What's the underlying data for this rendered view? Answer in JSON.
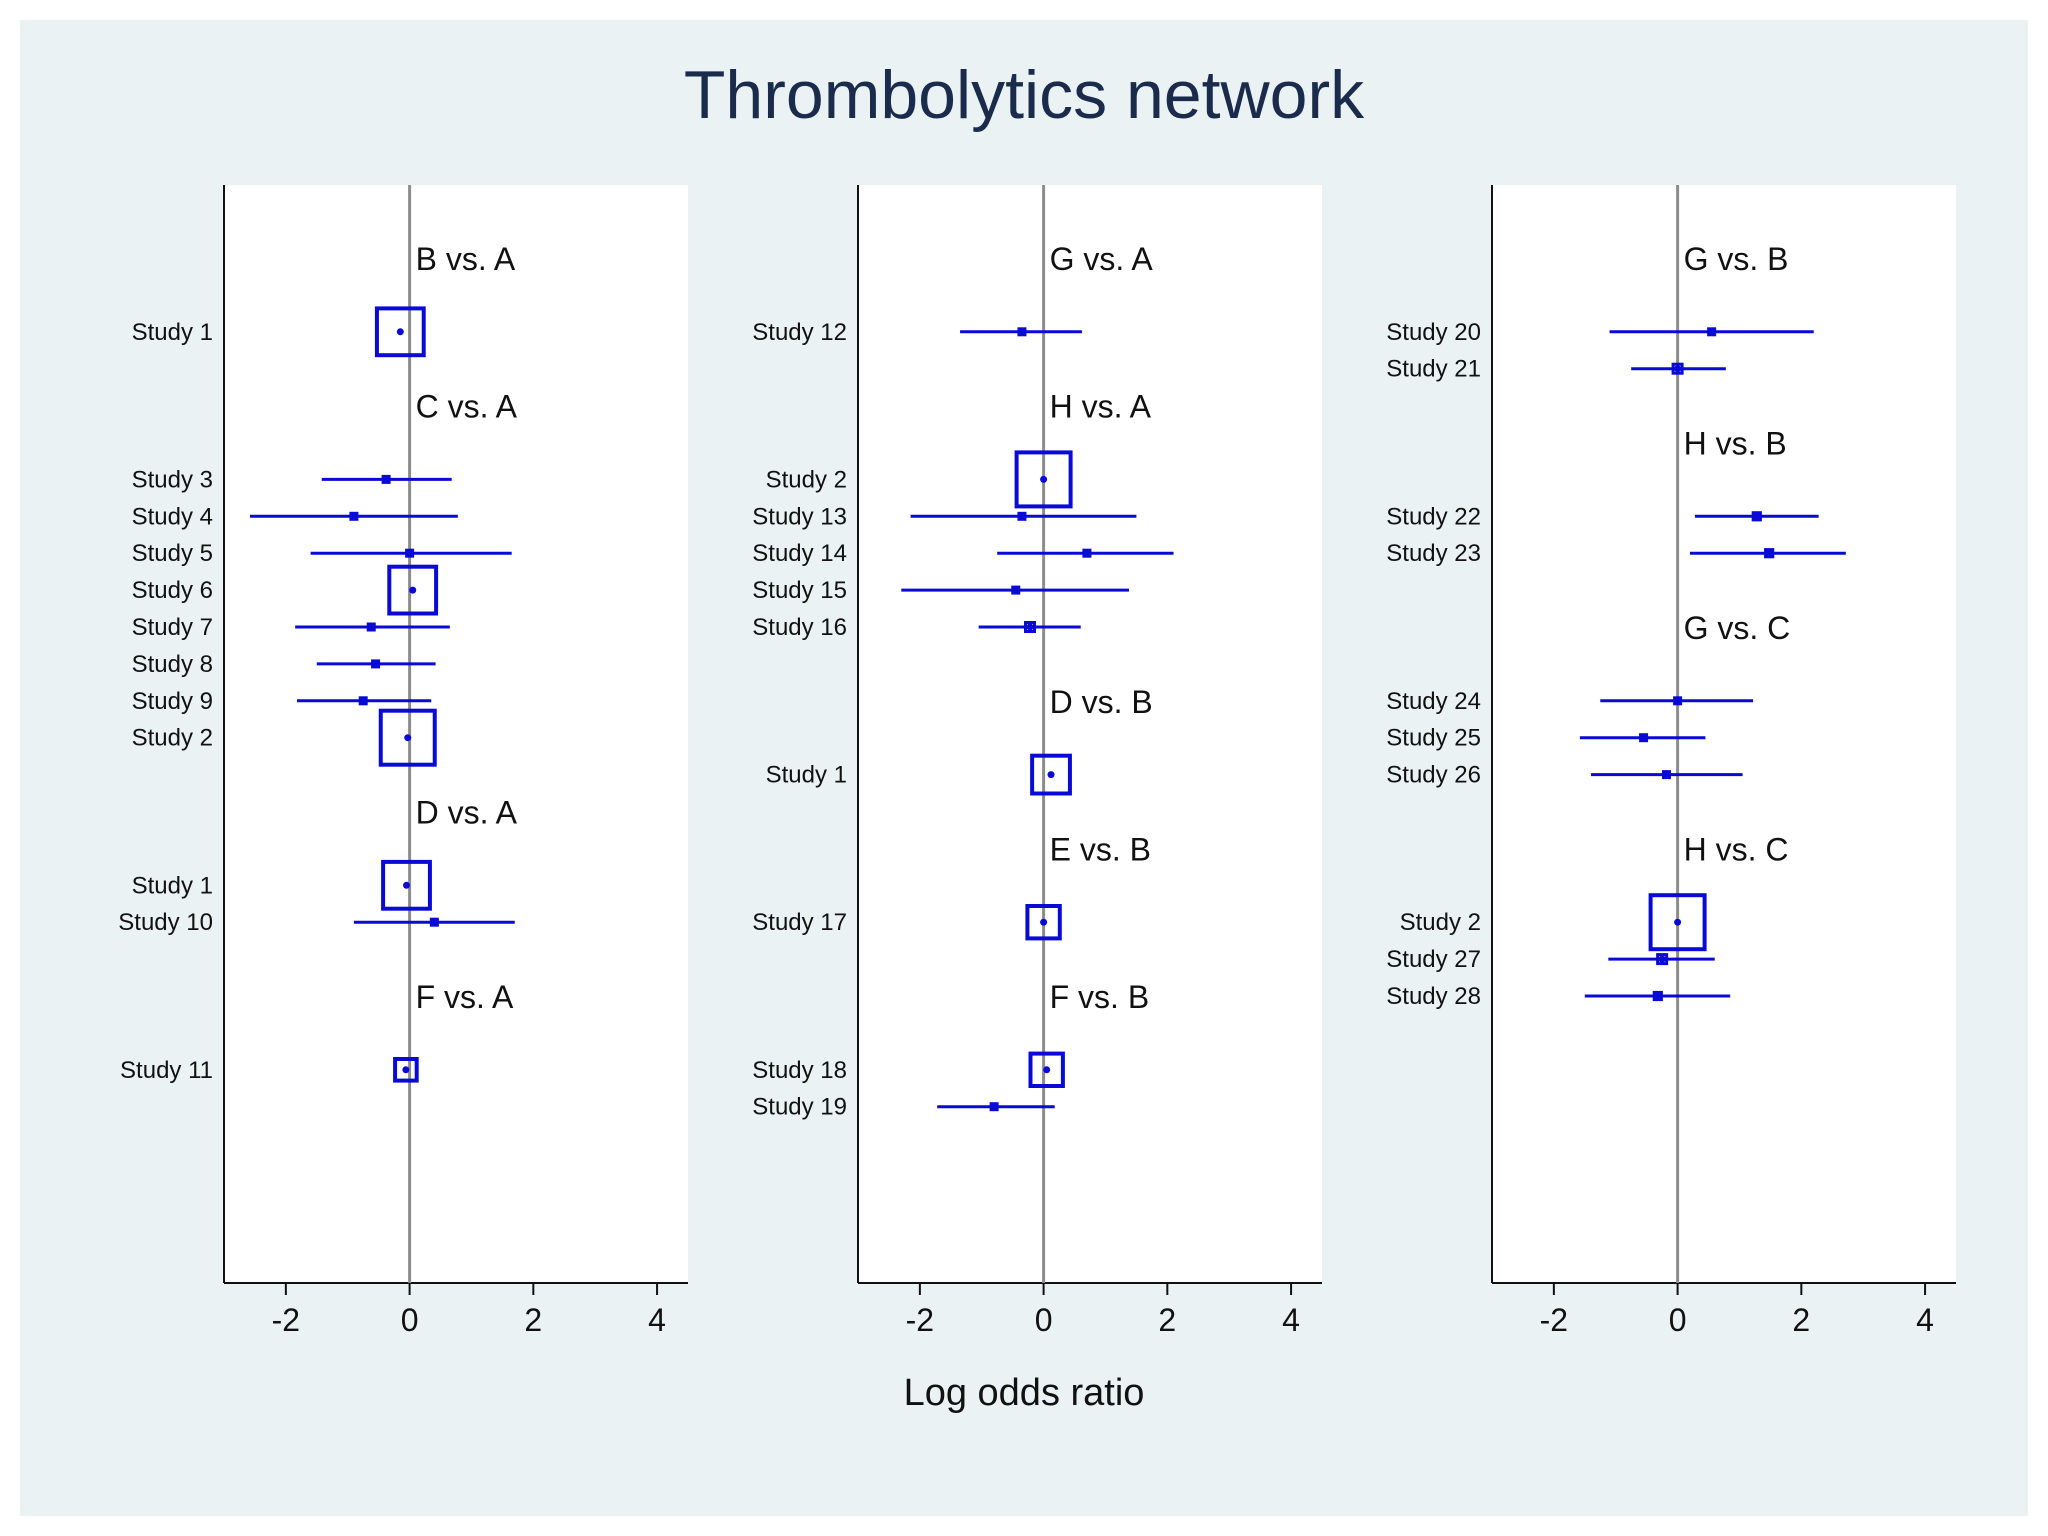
{
  "chart_data": {
    "type": "forest",
    "title": "Thrombolytics network",
    "xlabel": "Log odds ratio",
    "xlim": [
      -3,
      4.5
    ],
    "xticks": [
      -2,
      0,
      2,
      4
    ],
    "colors": {
      "background": "#eaf2f3",
      "panel": "#ffffff",
      "marker": "#0a0ad6",
      "ref_line": "#8c8c8c",
      "axis": "#111111",
      "title": "#1a2b4c"
    },
    "panels": [
      {
        "groups": [
          {
            "comparison": "B vs. A",
            "studies": [
              {
                "label": "Study 1",
                "estimate": -0.15,
                "lower": -0.15,
                "upper": -0.15,
                "weight": 2.6
              }
            ]
          },
          {
            "comparison": "C vs. A",
            "studies": [
              {
                "label": "Study 3",
                "estimate": -0.38,
                "lower": -1.42,
                "upper": 0.68,
                "weight": 0.3
              },
              {
                "label": "Study 4",
                "estimate": -0.9,
                "lower": -2.58,
                "upper": 0.78,
                "weight": 0.2
              },
              {
                "label": "Study 5",
                "estimate": 0.0,
                "lower": -1.6,
                "upper": 1.65,
                "weight": 0.2
              },
              {
                "label": "Study 6",
                "estimate": 0.05,
                "lower": 0.05,
                "upper": 0.05,
                "weight": 2.6
              },
              {
                "label": "Study 7",
                "estimate": -0.62,
                "lower": -1.85,
                "upper": 0.65,
                "weight": 0.3
              },
              {
                "label": "Study 8",
                "estimate": -0.55,
                "lower": -1.5,
                "upper": 0.42,
                "weight": 0.3
              },
              {
                "label": "Study 9",
                "estimate": -0.75,
                "lower": -1.82,
                "upper": 0.35,
                "weight": 0.3
              },
              {
                "label": "Study 2",
                "estimate": -0.03,
                "lower": -0.03,
                "upper": -0.03,
                "weight": 3.0
              }
            ]
          },
          {
            "comparison": "D vs. A",
            "studies": [
              {
                "label": "Study 1",
                "estimate": -0.05,
                "lower": -0.05,
                "upper": -0.05,
                "weight": 2.6
              },
              {
                "label": "Study 10",
                "estimate": 0.4,
                "lower": -0.9,
                "upper": 1.7,
                "weight": 0.3
              }
            ]
          },
          {
            "comparison": "F vs. A",
            "studies": [
              {
                "label": "Study 11",
                "estimate": -0.06,
                "lower": -0.06,
                "upper": -0.06,
                "weight": 1.2
              }
            ]
          }
        ]
      },
      {
        "groups": [
          {
            "comparison": "G vs. A",
            "studies": [
              {
                "label": "Study 12",
                "estimate": -0.35,
                "lower": -1.35,
                "upper": 0.62,
                "weight": 0.3
              }
            ]
          },
          {
            "comparison": "H vs. A",
            "studies": [
              {
                "label": "Study 2",
                "estimate": 0.0,
                "lower": 0.0,
                "upper": 0.0,
                "weight": 3.0
              },
              {
                "label": "Study 13",
                "estimate": -0.35,
                "lower": -2.15,
                "upper": 1.5,
                "weight": 0.2
              },
              {
                "label": "Study 14",
                "estimate": 0.7,
                "lower": -0.75,
                "upper": 2.1,
                "weight": 0.3
              },
              {
                "label": "Study 15",
                "estimate": -0.45,
                "lower": -2.3,
                "upper": 1.38,
                "weight": 0.2
              },
              {
                "label": "Study 16",
                "estimate": -0.22,
                "lower": -1.05,
                "upper": 0.6,
                "weight": 0.5
              }
            ]
          },
          {
            "comparison": "D vs. B",
            "studies": [
              {
                "label": "Study 1",
                "estimate": 0.12,
                "lower": 0.12,
                "upper": 0.12,
                "weight": 2.1
              }
            ]
          },
          {
            "comparison": "E vs. B",
            "studies": [
              {
                "label": "Study 17",
                "estimate": 0.0,
                "lower": 0.0,
                "upper": 0.0,
                "weight": 1.8
              }
            ]
          },
          {
            "comparison": "F vs. B",
            "studies": [
              {
                "label": "Study 18",
                "estimate": 0.05,
                "lower": 0.05,
                "upper": 0.05,
                "weight": 1.8
              },
              {
                "label": "Study 19",
                "estimate": -0.8,
                "lower": -1.72,
                "upper": 0.18,
                "weight": 0.3
              }
            ]
          }
        ]
      },
      {
        "groups": [
          {
            "comparison": "G vs. B",
            "studies": [
              {
                "label": "Study 20",
                "estimate": 0.55,
                "lower": -1.1,
                "upper": 2.2,
                "weight": 0.2
              },
              {
                "label": "Study 21",
                "estimate": 0.0,
                "lower": -0.75,
                "upper": 0.78,
                "weight": 0.5
              }
            ]
          },
          {
            "comparison": "H vs. B",
            "studies": [
              {
                "label": "Study 22",
                "estimate": 1.28,
                "lower": 0.28,
                "upper": 2.28,
                "weight": 0.4
              },
              {
                "label": "Study 23",
                "estimate": 1.48,
                "lower": 0.2,
                "upper": 2.72,
                "weight": 0.4
              }
            ]
          },
          {
            "comparison": "G vs. C",
            "studies": [
              {
                "label": "Study 24",
                "estimate": 0.0,
                "lower": -1.25,
                "upper": 1.22,
                "weight": 0.3
              },
              {
                "label": "Study 25",
                "estimate": -0.55,
                "lower": -1.58,
                "upper": 0.45,
                "weight": 0.3
              },
              {
                "label": "Study 26",
                "estimate": -0.18,
                "lower": -1.4,
                "upper": 1.05,
                "weight": 0.3
              }
            ]
          },
          {
            "comparison": "H vs. C",
            "studies": [
              {
                "label": "Study 2",
                "estimate": 0.0,
                "lower": 0.0,
                "upper": 0.0,
                "weight": 3.0
              },
              {
                "label": "Study 27",
                "estimate": -0.25,
                "lower": -1.12,
                "upper": 0.6,
                "weight": 0.5
              },
              {
                "label": "Study 28",
                "estimate": -0.32,
                "lower": -1.5,
                "upper": 0.85,
                "weight": 0.4
              }
            ]
          }
        ]
      }
    ]
  }
}
